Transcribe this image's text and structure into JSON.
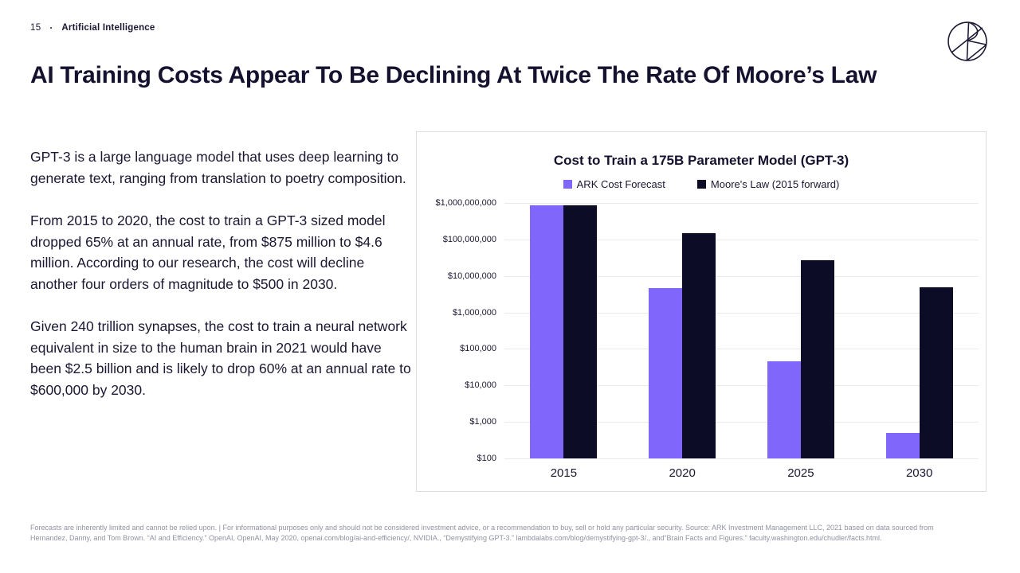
{
  "page": {
    "number": "15",
    "separator": "·",
    "section": "Artificial Intelligence"
  },
  "icons": {
    "logo": "ark-invest-logo"
  },
  "title": "AI Training Costs Appear To Be Declining At Twice The Rate Of Moore’s Law",
  "paragraphs": {
    "p1": "GPT-3 is a large language model that uses deep learning to generate text, ranging from translation to poetry composition.",
    "p2": "From 2015 to 2020, the cost to train a GPT-3 sized model dropped 65% at an annual rate, from $875 million to $4.6 million. According to our research, the cost will decline another four orders of magnitude to $500 in 2030.",
    "p3": "Given 240 trillion synapses, the cost to train a neural network equivalent in size to the human brain in 2021 would have been $2.5 billion and is likely to drop 60% at an annual rate to $600,000 by 2030."
  },
  "footer": "Forecasts are inherently limited and cannot be relied upon. | For informational purposes only and should not be considered investment advice, or a recommendation to buy, sell or hold any particular security. Source: ARK Investment Management LLC, 2021 based on data sourced from Hernandez, Danny, and Tom Brown. “AI and Efficiency.” OpenAI, OpenAI, May 2020, openai.com/blog/ai-and-efficiency/, NVIDIA., “Demystifying GPT-3.” lambdalabs.com/blog/demystifying-gpt-3/., and“Brain Facts and Figures.” faculty.washington.edu/chudler/facts.html.",
  "chart_data": {
    "type": "bar",
    "title": "Cost to Train a 175B Parameter Model (GPT-3)",
    "categories": [
      "2015",
      "2020",
      "2025",
      "2030"
    ],
    "series": [
      {
        "name": "ARK Cost Forecast",
        "color": "#8066FA",
        "values": [
          875000000,
          4600000,
          46000,
          500
        ]
      },
      {
        "name": "Moore's Law (2015 forward)",
        "color": "#0D0C26",
        "values": [
          875000000,
          150000000,
          27000000,
          4800000
        ]
      }
    ],
    "y_axis": {
      "scale": "log",
      "min": 100,
      "max": 1000000000,
      "tick_labels": [
        "$1,000,000,000",
        "$100,000,000",
        "$10,000,000",
        "$1,000,000",
        "$100,000",
        "$10,000",
        "$1,000",
        "$100"
      ]
    },
    "xlabel": "",
    "ylabel": "",
    "grid": true,
    "legend_position": "top"
  },
  "colors": {
    "accent_purple": "#8066FA",
    "dark_navy": "#0D0C26",
    "text_navy": "#1A1832",
    "footer_grey": "#8F92A2"
  }
}
